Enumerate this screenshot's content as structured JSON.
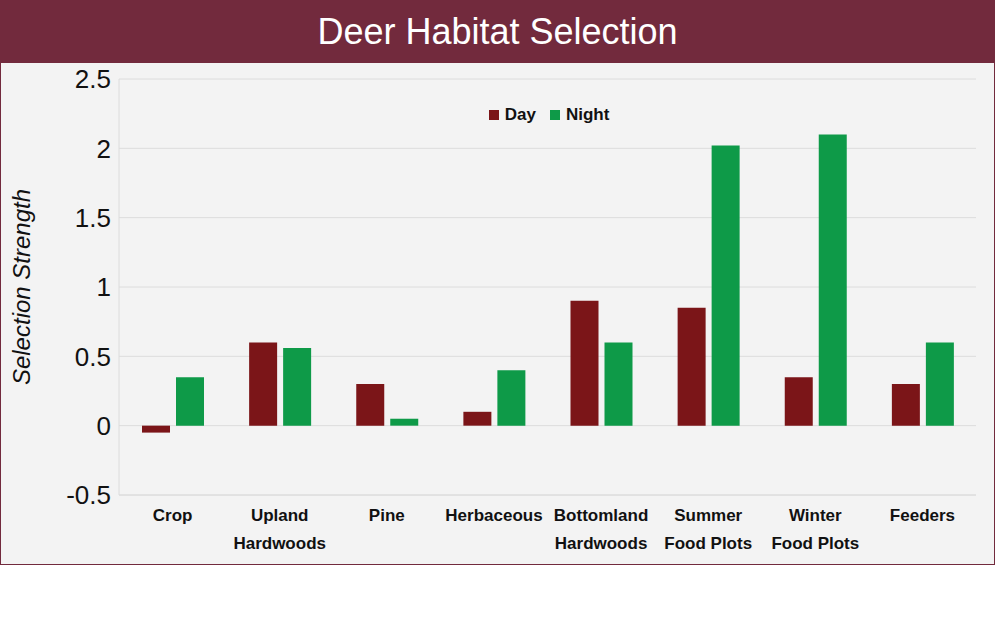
{
  "chart_data": {
    "type": "bar",
    "title": "Deer Habitat Selection",
    "y_label": "Selection Strength",
    "categories": [
      "Crop",
      "Upland Hardwoods",
      "Pine",
      "Herbaceous",
      "Bottomland Hardwoods",
      "Summer Food Plots",
      "Winter Food Plots",
      "Feeders"
    ],
    "series": [
      {
        "name": "Day",
        "color": "#7b1518",
        "values": [
          -0.05,
          0.6,
          0.3,
          0.1,
          0.9,
          0.85,
          0.35,
          0.3
        ]
      },
      {
        "name": "Night",
        "color": "#0e9a48",
        "values": [
          0.35,
          0.56,
          0.05,
          0.4,
          0.6,
          2.02,
          2.1,
          0.6
        ]
      }
    ],
    "ylim": [
      -0.5,
      2.5
    ],
    "yticks": [
      -0.5,
      0,
      0.5,
      1,
      1.5,
      2,
      2.5
    ],
    "grid": true,
    "legend": "top"
  }
}
